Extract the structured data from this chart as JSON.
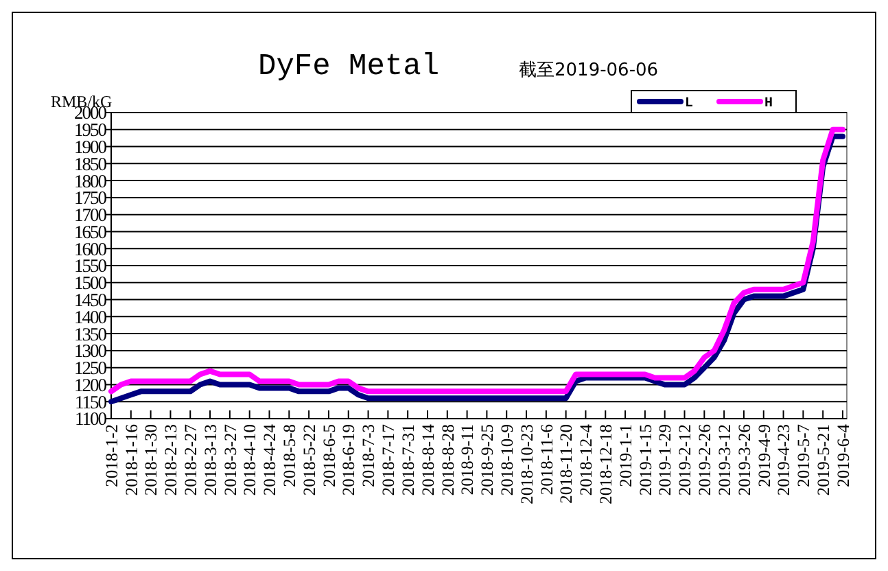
{
  "chart_data": {
    "type": "line",
    "title": "DyFe Metal",
    "subtitle": "截至2019-06-06",
    "ylabel": "RMB/kG",
    "categories": [
      "2018-1-2",
      null,
      "2018-1-16",
      null,
      "2018-1-30",
      null,
      "2018-2-13",
      null,
      "2018-2-27",
      null,
      "2018-3-13",
      null,
      "2018-3-27",
      null,
      "2018-4-10",
      null,
      "2018-4-24",
      null,
      "2018-5-8",
      null,
      "2018-5-22",
      null,
      "2018-6-5",
      null,
      "2018-6-19",
      null,
      "2018-7-3",
      null,
      "2018-7-17",
      null,
      "2018-7-31",
      null,
      "2018-8-14",
      null,
      "2018-8-28",
      null,
      "2018-9-11",
      null,
      "2018-9-25",
      null,
      "2018-10-9",
      null,
      "2018-10-23",
      null,
      "2018-11-6",
      null,
      "2018-11-20",
      null,
      "2018-12-4",
      null,
      "2018-12-18",
      null,
      "2019-1-1",
      null,
      "2019-1-15",
      null,
      "2019-1-29",
      null,
      "2019-2-12",
      null,
      "2019-2-26",
      null,
      "2019-3-12",
      null,
      "2019-3-26",
      null,
      "2019-4-9",
      null,
      "2019-4-23",
      null,
      "2019-5-7",
      null,
      "2019-5-21",
      null,
      "2019-6-4"
    ],
    "series": [
      {
        "name": "L",
        "color": "#000080",
        "values": [
          1150,
          1160,
          1170,
          1180,
          1180,
          1180,
          1180,
          1180,
          1180,
          1200,
          1210,
          1200,
          1200,
          1200,
          1200,
          1190,
          1190,
          1190,
          1190,
          1180,
          1180,
          1180,
          1180,
          1190,
          1190,
          1170,
          1160,
          1160,
          1160,
          1160,
          1160,
          1160,
          1160,
          1160,
          1160,
          1160,
          1160,
          1160,
          1160,
          1160,
          1160,
          1160,
          1160,
          1160,
          1160,
          1160,
          1160,
          1210,
          1220,
          1220,
          1220,
          1220,
          1220,
          1220,
          1220,
          1210,
          1200,
          1200,
          1200,
          1220,
          1250,
          1280,
          1330,
          1410,
          1450,
          1460,
          1460,
          1460,
          1460,
          1470,
          1480,
          1600,
          1840,
          1930,
          1930
        ]
      },
      {
        "name": "H",
        "color": "#ff00ff",
        "values": [
          1180,
          1200,
          1210,
          1210,
          1210,
          1210,
          1210,
          1210,
          1210,
          1230,
          1240,
          1230,
          1230,
          1230,
          1230,
          1210,
          1210,
          1210,
          1210,
          1200,
          1200,
          1200,
          1200,
          1210,
          1210,
          1190,
          1180,
          1180,
          1180,
          1180,
          1180,
          1180,
          1180,
          1180,
          1180,
          1180,
          1180,
          1180,
          1180,
          1180,
          1180,
          1180,
          1180,
          1180,
          1180,
          1180,
          1180,
          1230,
          1230,
          1230,
          1230,
          1230,
          1230,
          1230,
          1230,
          1220,
          1220,
          1220,
          1220,
          1240,
          1280,
          1300,
          1360,
          1440,
          1470,
          1480,
          1480,
          1480,
          1480,
          1490,
          1500,
          1620,
          1860,
          1950,
          1950
        ]
      }
    ],
    "ylim": [
      1100,
      2000
    ],
    "yticks": [
      1100,
      1150,
      1200,
      1250,
      1300,
      1350,
      1400,
      1450,
      1500,
      1550,
      1600,
      1650,
      1700,
      1750,
      1800,
      1850,
      1900,
      1950,
      2000
    ],
    "grid": "y",
    "legend": "top right",
    "marker": "none",
    "line_style": "solid"
  }
}
